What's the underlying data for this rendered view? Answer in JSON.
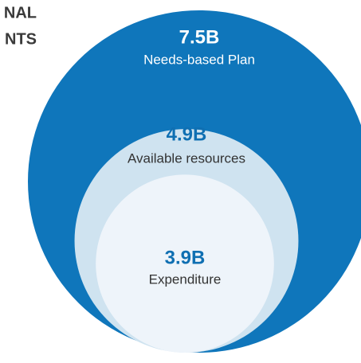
{
  "chart_data": {
    "type": "nested-circles",
    "title": [
      "NAL",
      "NTS"
    ],
    "categories": [
      "Needs-based Plan",
      "Available resources",
      "Expenditure"
    ],
    "values": [
      7.5,
      4.9,
      3.9
    ],
    "value_labels": [
      "7.5B",
      "4.9B",
      "3.9B"
    ],
    "colors": [
      "#0f76bb",
      "#cfe3f0",
      "#eef4fa"
    ]
  }
}
